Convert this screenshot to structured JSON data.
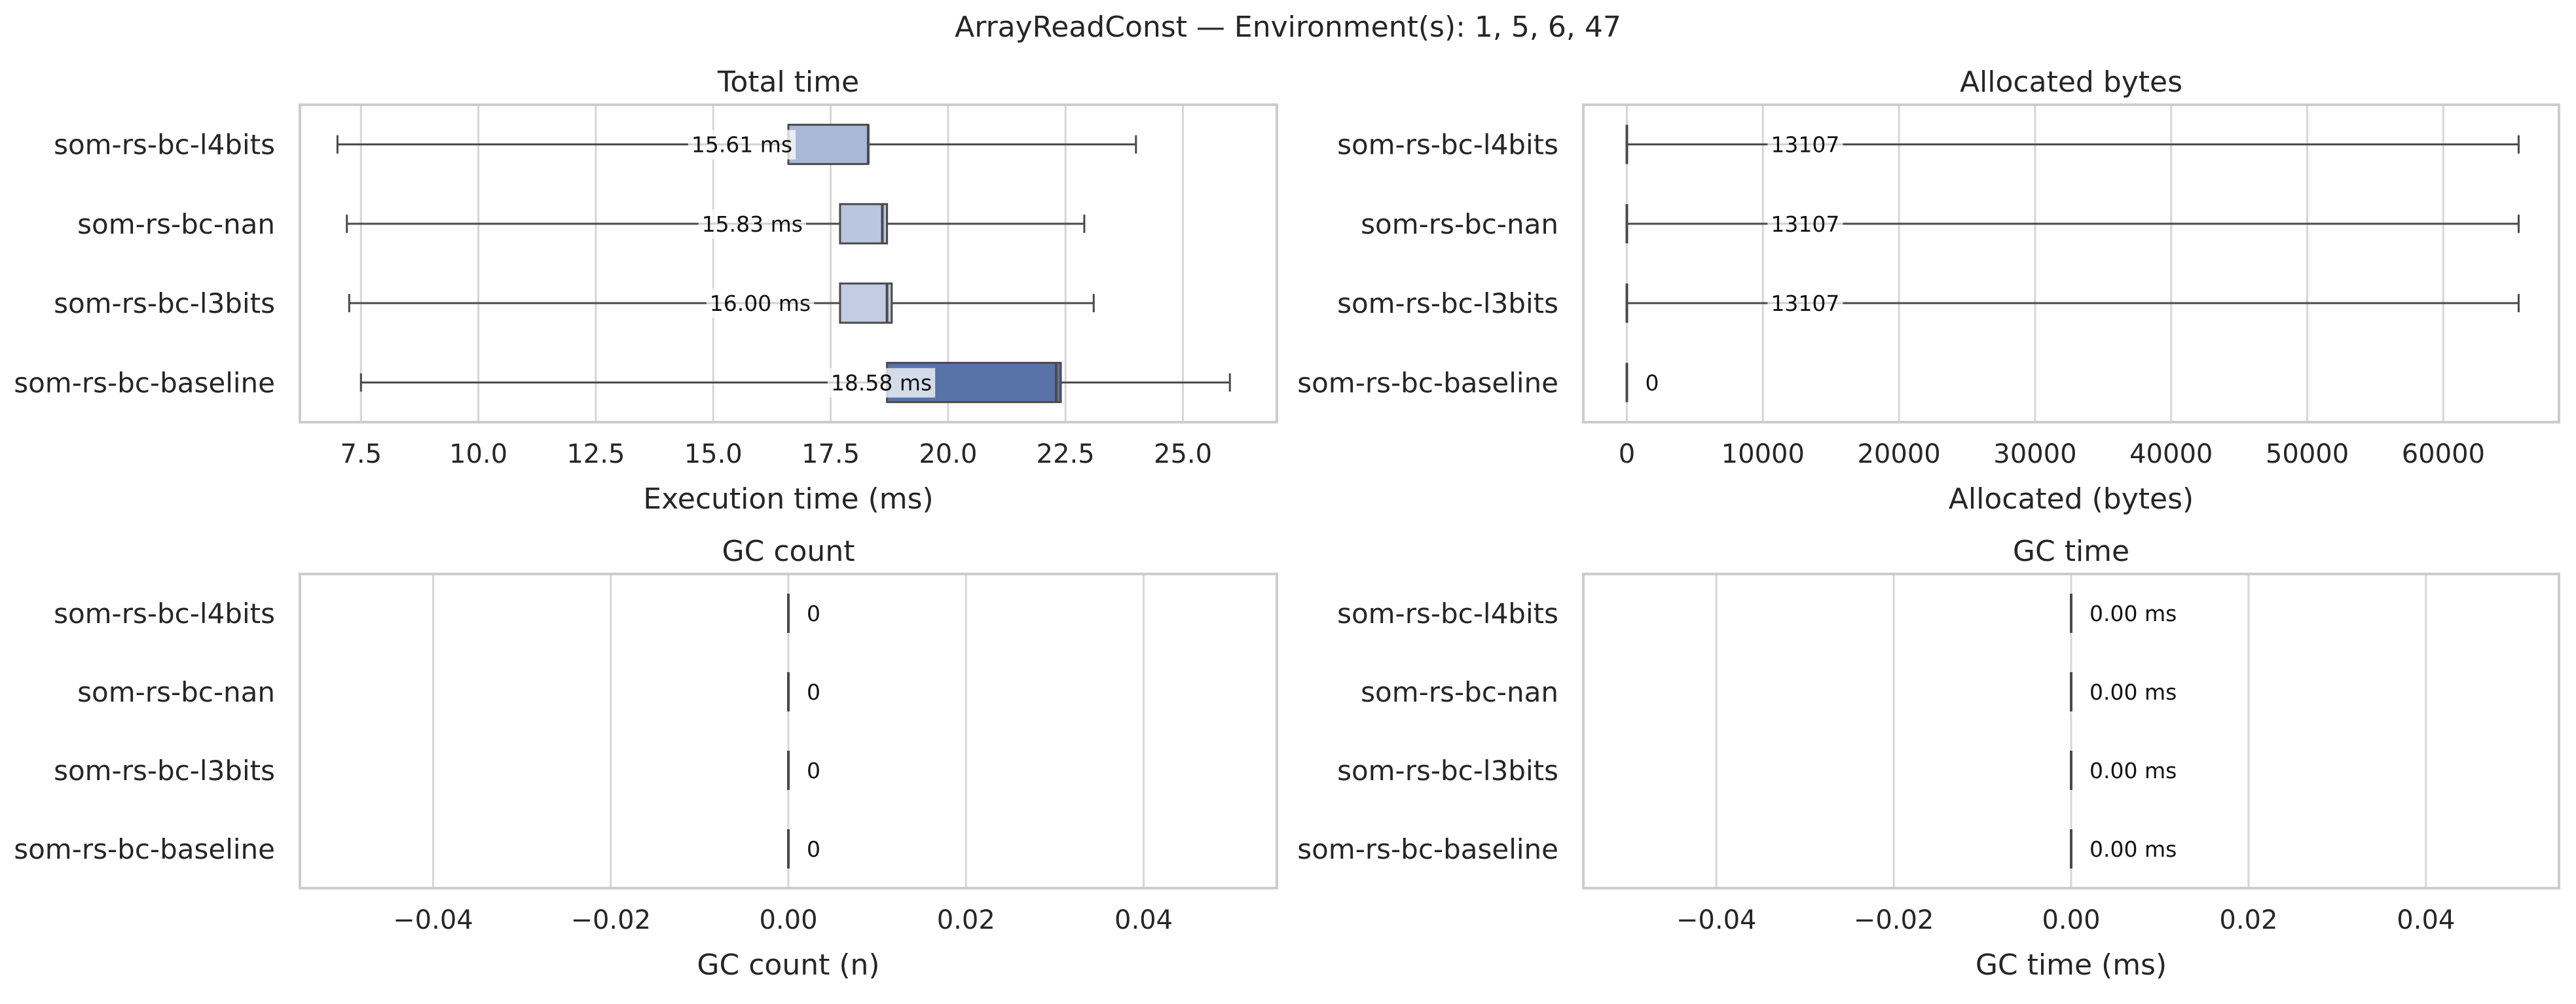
{
  "figure": {
    "title": "ArrayReadConst — Environment(s): 1, 5, 6, 47"
  },
  "chart_data": [
    {
      "type": "box",
      "title": "Total time",
      "xlabel": "Execution time (ms)",
      "ylabel": "",
      "xlim": [
        6.2,
        27.0
      ],
      "xticks": [
        7.5,
        10.0,
        12.5,
        15.0,
        17.5,
        20.0,
        22.5,
        25.0
      ],
      "xtick_labels": [
        "7.5",
        "10.0",
        "12.5",
        "15.0",
        "17.5",
        "20.0",
        "22.5",
        "25.0"
      ],
      "grid": true,
      "categories": [
        "som-rs-bc-l4bits",
        "som-rs-bc-nan",
        "som-rs-bc-l3bits",
        "som-rs-bc-baseline"
      ],
      "series": [
        {
          "category": "som-rs-bc-l4bits",
          "whisker_low": 7.0,
          "q1": 16.6,
          "median": 18.3,
          "q3": 18.3,
          "whisker_high": 24.0,
          "mean": 15.61,
          "label": "15.61 ms"
        },
        {
          "category": "som-rs-bc-nan",
          "whisker_low": 7.2,
          "q1": 17.7,
          "median": 18.6,
          "q3": 18.7,
          "whisker_high": 22.9,
          "mean": 15.83,
          "label": "15.83 ms"
        },
        {
          "category": "som-rs-bc-l3bits",
          "whisker_low": 7.25,
          "q1": 17.7,
          "median": 18.7,
          "q3": 18.8,
          "whisker_high": 23.1,
          "mean": 16.0,
          "label": "16.00 ms"
        },
        {
          "category": "som-rs-bc-baseline",
          "whisker_low": 7.5,
          "q1": 18.7,
          "median": 22.3,
          "q3": 22.4,
          "whisker_high": 26.0,
          "mean": 18.58,
          "label": "18.58 ms"
        }
      ]
    },
    {
      "type": "box",
      "title": "Allocated bytes",
      "xlabel": "Allocated (bytes)",
      "ylabel": "",
      "xlim": [
        -3200,
        68500
      ],
      "xticks": [
        0,
        10000,
        20000,
        30000,
        40000,
        50000,
        60000
      ],
      "xtick_labels": [
        "0",
        "10000",
        "20000",
        "30000",
        "40000",
        "50000",
        "60000"
      ],
      "grid": true,
      "categories": [
        "som-rs-bc-l4bits",
        "som-rs-bc-nan",
        "som-rs-bc-l3bits",
        "som-rs-bc-baseline"
      ],
      "series": [
        {
          "category": "som-rs-bc-l4bits",
          "whisker_low": 0,
          "q1": 0,
          "median": 0,
          "q3": 0,
          "whisker_high": 65536,
          "mean": 13107,
          "label": "13107"
        },
        {
          "category": "som-rs-bc-nan",
          "whisker_low": 0,
          "q1": 0,
          "median": 0,
          "q3": 0,
          "whisker_high": 65536,
          "mean": 13107,
          "label": "13107"
        },
        {
          "category": "som-rs-bc-l3bits",
          "whisker_low": 0,
          "q1": 0,
          "median": 0,
          "q3": 0,
          "whisker_high": 65536,
          "mean": 13107,
          "label": "13107"
        },
        {
          "category": "som-rs-bc-baseline",
          "whisker_low": 0,
          "q1": 0,
          "median": 0,
          "q3": 0,
          "whisker_high": 0,
          "mean": 0,
          "label": "0"
        }
      ]
    },
    {
      "type": "box",
      "title": "GC count",
      "xlabel": "GC count (n)",
      "ylabel": "",
      "xlim": [
        -0.055,
        0.055
      ],
      "xticks": [
        -0.04,
        -0.02,
        0.0,
        0.02,
        0.04
      ],
      "xtick_labels": [
        "−0.04",
        "−0.02",
        "0.00",
        "0.02",
        "0.04"
      ],
      "grid": true,
      "categories": [
        "som-rs-bc-l4bits",
        "som-rs-bc-nan",
        "som-rs-bc-l3bits",
        "som-rs-bc-baseline"
      ],
      "series": [
        {
          "category": "som-rs-bc-l4bits",
          "whisker_low": 0,
          "q1": 0,
          "median": 0,
          "q3": 0,
          "whisker_high": 0,
          "mean": 0,
          "label": "0"
        },
        {
          "category": "som-rs-bc-nan",
          "whisker_low": 0,
          "q1": 0,
          "median": 0,
          "q3": 0,
          "whisker_high": 0,
          "mean": 0,
          "label": "0"
        },
        {
          "category": "som-rs-bc-l3bits",
          "whisker_low": 0,
          "q1": 0,
          "median": 0,
          "q3": 0,
          "whisker_high": 0,
          "mean": 0,
          "label": "0"
        },
        {
          "category": "som-rs-bc-baseline",
          "whisker_low": 0,
          "q1": 0,
          "median": 0,
          "q3": 0,
          "whisker_high": 0,
          "mean": 0,
          "label": "0"
        }
      ]
    },
    {
      "type": "box",
      "title": "GC time",
      "xlabel": "GC time (ms)",
      "ylabel": "",
      "xlim": [
        -0.055,
        0.055
      ],
      "xticks": [
        -0.04,
        -0.02,
        0.0,
        0.02,
        0.04
      ],
      "xtick_labels": [
        "−0.04",
        "−0.02",
        "0.00",
        "0.02",
        "0.04"
      ],
      "grid": true,
      "categories": [
        "som-rs-bc-l4bits",
        "som-rs-bc-nan",
        "som-rs-bc-l3bits",
        "som-rs-bc-baseline"
      ],
      "series": [
        {
          "category": "som-rs-bc-l4bits",
          "whisker_low": 0,
          "q1": 0,
          "median": 0,
          "q3": 0,
          "whisker_high": 0,
          "mean": 0,
          "label": "0.00 ms"
        },
        {
          "category": "som-rs-bc-nan",
          "whisker_low": 0,
          "q1": 0,
          "median": 0,
          "q3": 0,
          "whisker_high": 0,
          "mean": 0,
          "label": "0.00 ms"
        },
        {
          "category": "som-rs-bc-l3bits",
          "whisker_low": 0,
          "q1": 0,
          "median": 0,
          "q3": 0,
          "whisker_high": 0,
          "mean": 0,
          "label": "0.00 ms"
        },
        {
          "category": "som-rs-bc-baseline",
          "whisker_low": 0,
          "q1": 0,
          "median": 0,
          "q3": 0,
          "whisker_high": 0,
          "mean": 0,
          "label": "0.00 ms"
        }
      ]
    }
  ],
  "colors": {
    "box_fills": [
      "#a9b8d6",
      "#b9c6de",
      "#c2cde3",
      "#5873a8"
    ],
    "label_box": "#dde4f0",
    "grid": "#d6d6d6",
    "frame": "#cccccc",
    "line": "#4a4a4a"
  }
}
